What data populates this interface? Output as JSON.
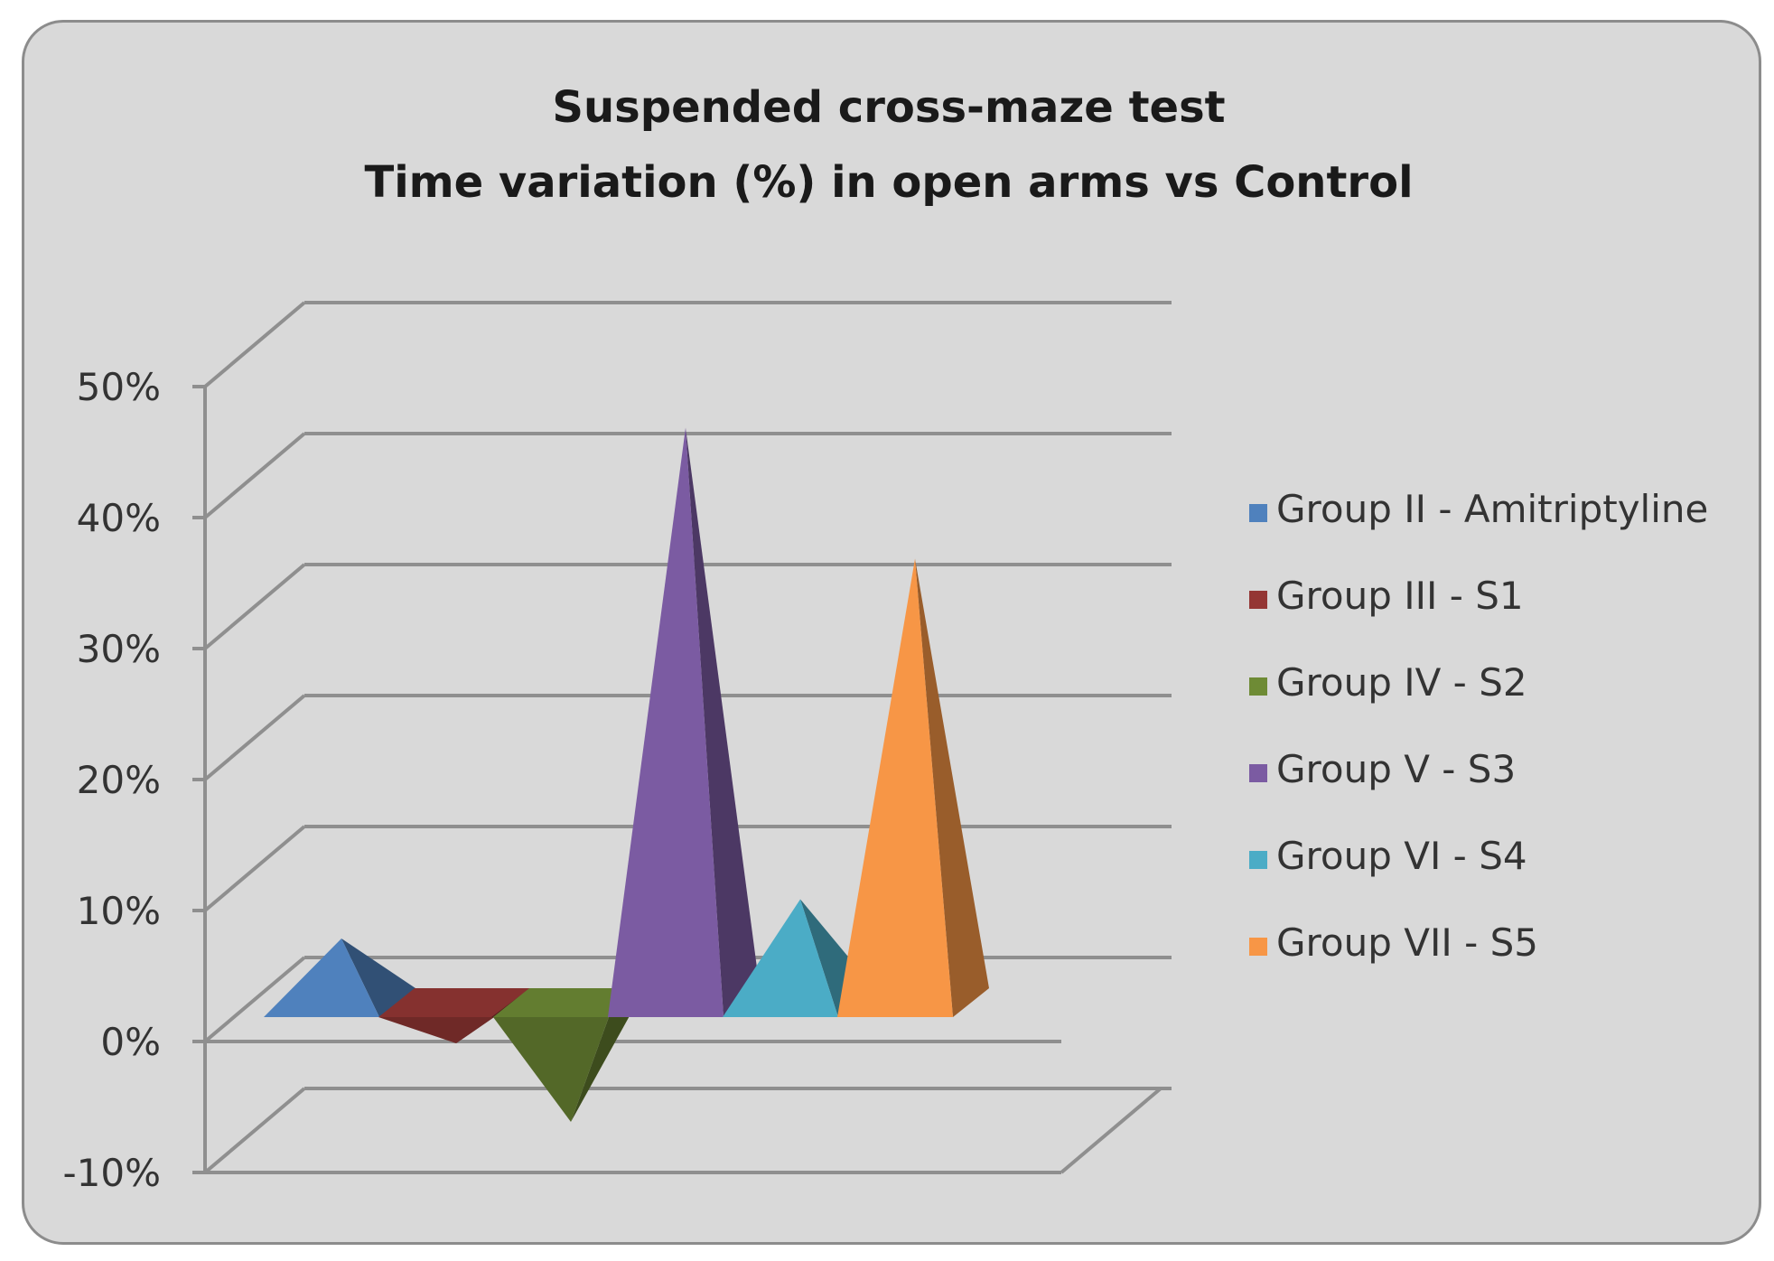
{
  "chart_data": {
    "type": "bar",
    "style": "3d-pyramid",
    "title_lines": [
      "Suspended cross-maze test",
      "Time variation (%) in open arms vs Control"
    ],
    "xlabel": "",
    "ylabel": "",
    "ylim": [
      -10,
      50
    ],
    "y_ticks": [
      50,
      40,
      30,
      20,
      10,
      0,
      -10
    ],
    "y_tick_labels": [
      "50%",
      "40%",
      "30%",
      "20%",
      "10%",
      "0%",
      "-10%"
    ],
    "grid": true,
    "legend_position": "right",
    "series": [
      {
        "name": "Group II - Amitriptyline",
        "value": 6,
        "color": "#4f81bd"
      },
      {
        "name": "Group III - S1",
        "value": -2,
        "color": "#943634"
      },
      {
        "name": "Group IV - S2",
        "value": -8,
        "color": "#6e8b35"
      },
      {
        "name": "Group V - S3",
        "value": 45,
        "color": "#7b5ba2"
      },
      {
        "name": "Group VI - S4",
        "value": 9,
        "color": "#4bacc6"
      },
      {
        "name": "Group VII - S5",
        "value": 35,
        "color": "#f79646"
      }
    ]
  }
}
